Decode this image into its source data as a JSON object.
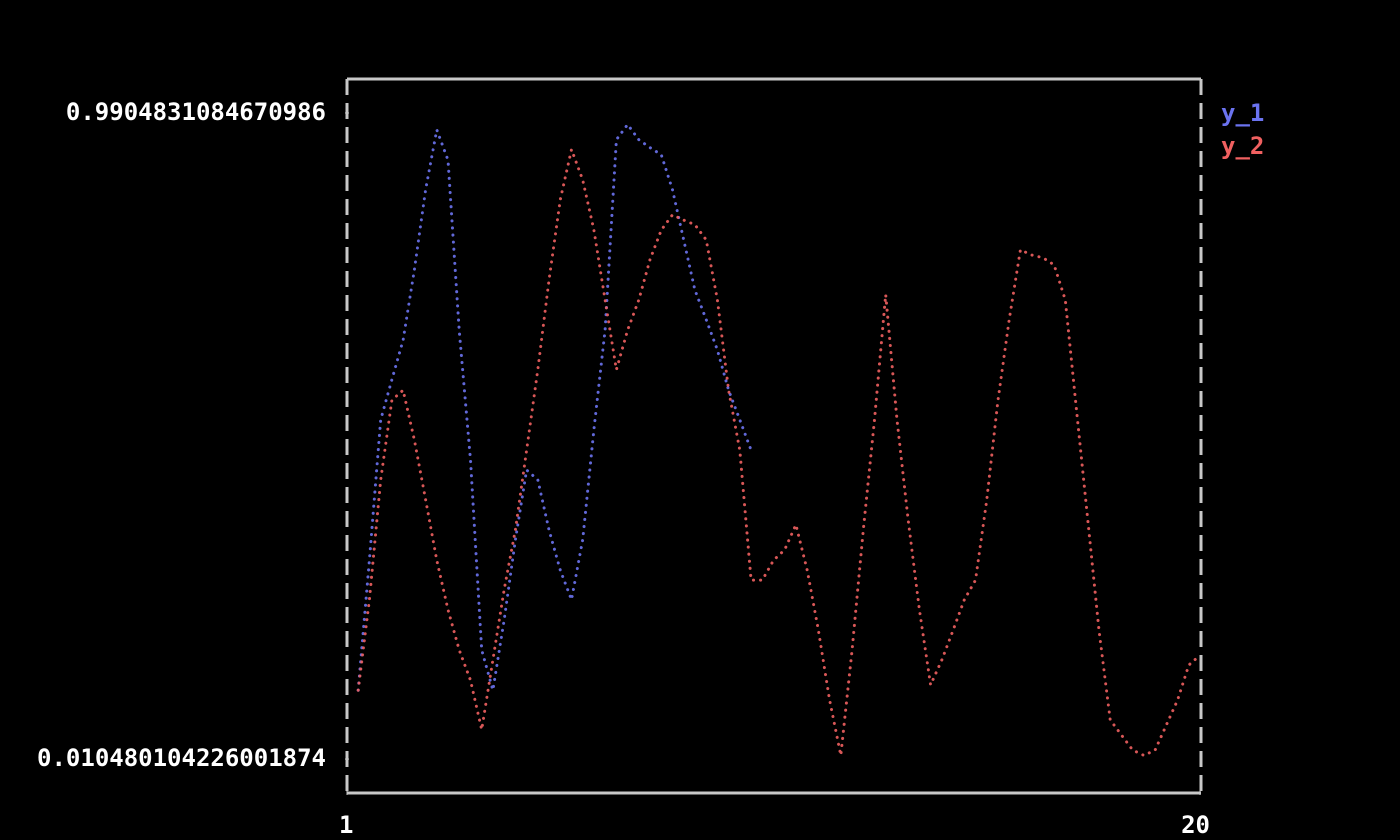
{
  "chart_data": {
    "type": "line",
    "x": [
      1.25,
      1.5,
      1.75,
      2,
      2.25,
      2.5,
      2.75,
      3,
      3.25,
      3.5,
      3.75,
      4,
      4.25,
      4.5,
      4.75,
      5,
      5.25,
      5.5,
      5.75,
      6,
      6.25,
      6.5,
      6.75,
      7,
      7.25,
      7.5,
      7.75,
      8,
      8.25,
      8.5,
      8.75,
      9,
      9.25,
      9.5,
      9.75,
      10,
      10.25,
      10.5,
      10.75,
      11,
      11.25,
      11.5,
      11.75,
      12,
      12.25,
      12.5,
      12.75,
      13,
      13.25,
      13.5,
      13.75,
      14,
      14.25,
      14.5,
      14.75,
      15,
      15.25,
      15.5,
      15.75,
      16,
      16.25,
      16.5,
      16.75,
      17,
      17.25,
      17.5,
      17.75,
      18,
      18.25,
      18.5,
      18.75,
      19,
      19.25,
      19.5,
      19.75,
      20
    ],
    "series": [
      {
        "name": "y_1",
        "color": "#6b73f0",
        "values": [
          0.115,
          0.312,
          0.525,
          0.586,
          0.646,
          0.752,
          0.874,
          0.965,
          0.919,
          0.661,
          0.464,
          0.176,
          0.115,
          0.221,
          0.343,
          0.449,
          0.434,
          0.358,
          0.297,
          0.252,
          0.343,
          0.51,
          0.661,
          0.95,
          0.973,
          0.95,
          0.938,
          0.927,
          0.874,
          0.798,
          0.722,
          0.677,
          0.631,
          0.57,
          0.525,
          0.479,
          null,
          null,
          null,
          null,
          null,
          null,
          null,
          null,
          null,
          null,
          null,
          null,
          null,
          null,
          null,
          null,
          null,
          null,
          null,
          null,
          null,
          null,
          null,
          null,
          null,
          null,
          null,
          null,
          null,
          null,
          null,
          null,
          null,
          null,
          null,
          null,
          null,
          null,
          null,
          null
        ]
      },
      {
        "name": "y_2",
        "color": "#f06060",
        "values": [
          0.115,
          0.252,
          0.434,
          0.555,
          0.57,
          0.495,
          0.404,
          0.312,
          0.237,
          0.176,
          0.13,
          0.055,
          0.161,
          0.267,
          0.358,
          0.479,
          0.601,
          0.737,
          0.859,
          0.935,
          0.889,
          0.813,
          0.707,
          0.601,
          0.661,
          0.707,
          0.768,
          0.813,
          0.836,
          0.828,
          0.821,
          0.798,
          0.707,
          0.57,
          0.479,
          0.282,
          0.282,
          0.312,
          0.328,
          0.366,
          0.297,
          0.206,
          0.1,
          0.016,
          0.176,
          0.358,
          0.525,
          0.715,
          0.525,
          0.373,
          0.237,
          0.123,
          0.161,
          0.206,
          0.252,
          0.282,
          0.404,
          0.555,
          0.677,
          0.783,
          0.775,
          0.771,
          0.76,
          0.707,
          0.54,
          0.373,
          0.206,
          0.07,
          0.047,
          0.024,
          0.016,
          0.024,
          0.062,
          0.1,
          0.153,
          0.168
        ]
      }
    ],
    "xlim": [
      1,
      20
    ],
    "xticks": [
      1,
      20
    ],
    "ylim": [
      -0.041,
      1.042
    ],
    "yticks": [
      0.010480104226001874,
      0.9904831084670986
    ],
    "legend": "right"
  }
}
